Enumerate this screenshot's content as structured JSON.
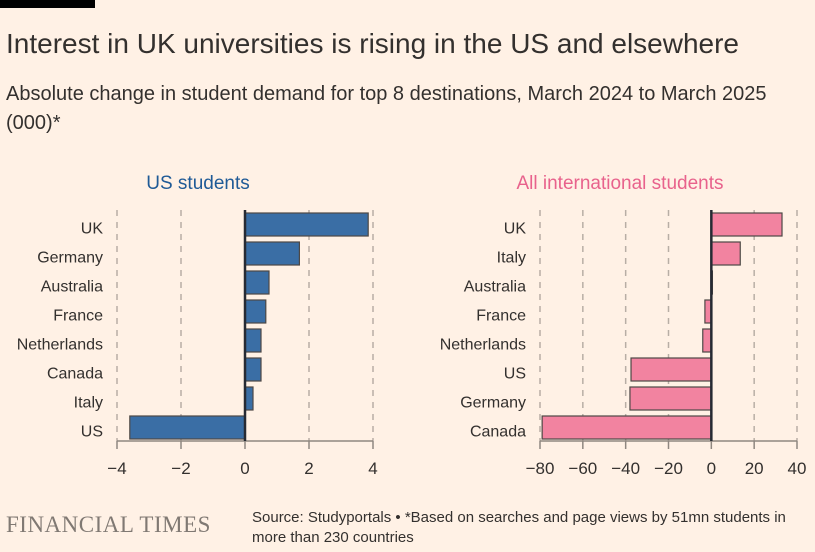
{
  "title": "Interest in UK universities is rising in the US and elsewhere",
  "subtitle": "Absolute change in student demand for top 8 destinations, March 2024 to March 2025 (000)*",
  "source": "Source: Studyportals • *Based on searches and page views by 51mn students in more than 230 countries",
  "logo": "FINANCIAL TIMES",
  "chart_data": [
    {
      "type": "bar",
      "orientation": "horizontal",
      "title": "US students",
      "color": "#3a6ea5",
      "categories": [
        "UK",
        "Germany",
        "Australia",
        "France",
        "Netherlands",
        "Canada",
        "Italy",
        "US"
      ],
      "values": [
        3.85,
        1.7,
        0.75,
        0.65,
        0.5,
        0.5,
        0.25,
        -3.6
      ],
      "xlim": [
        -4,
        4
      ],
      "xticks": [
        -4,
        -2,
        0,
        2,
        4
      ],
      "grid": true
    },
    {
      "type": "bar",
      "orientation": "horizontal",
      "title": "All international students",
      "color": "#f283a0",
      "categories": [
        "UK",
        "Italy",
        "Australia",
        "France",
        "Netherlands",
        "US",
        "Germany",
        "Canada"
      ],
      "values": [
        33,
        13.5,
        0.5,
        -3,
        -4,
        -37.5,
        -38,
        -79
      ],
      "xlim": [
        -80,
        40
      ],
      "xticks": [
        -80,
        -60,
        -40,
        -20,
        0,
        20,
        40
      ],
      "grid": true
    }
  ]
}
